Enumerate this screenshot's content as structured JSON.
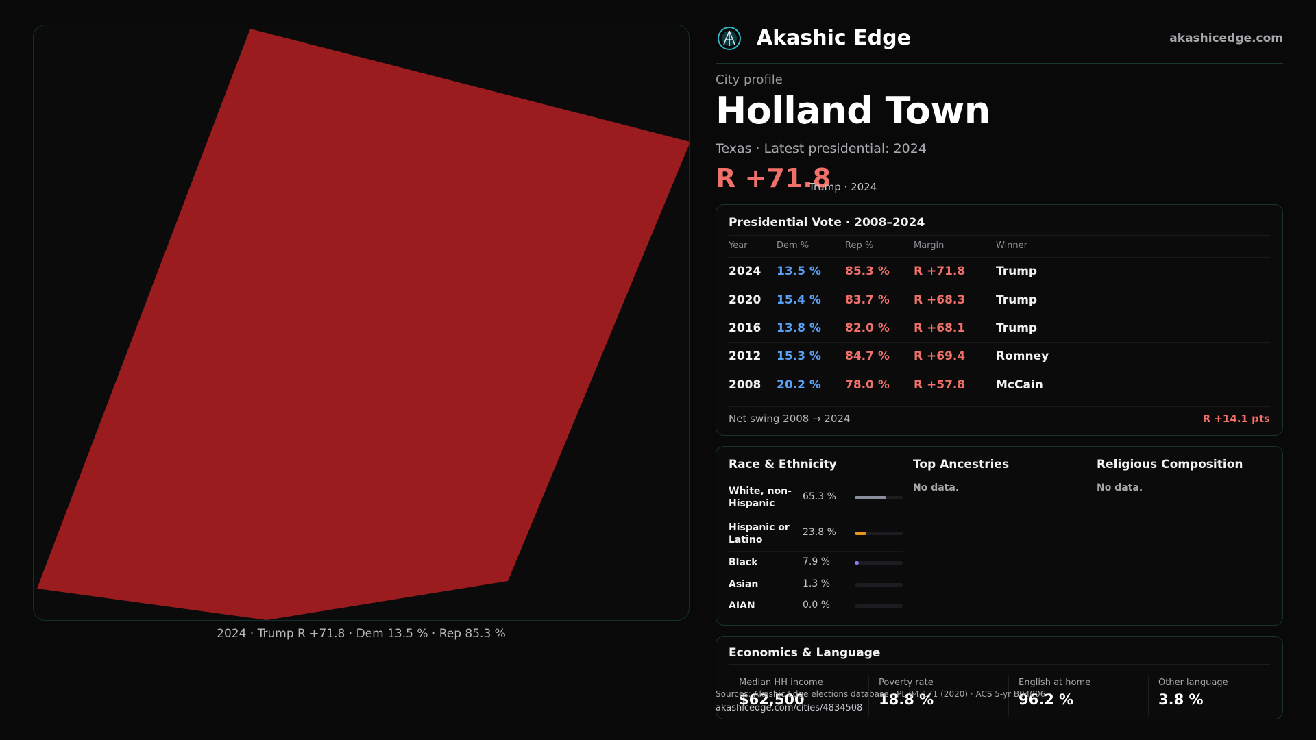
{
  "brand": {
    "name": "Akashic Edge",
    "site": "akashicedge.com",
    "logo_icon": "akashic-edge-logo-icon",
    "accent": "#2fb8c4"
  },
  "map": {
    "fill_color": "#9b1c1f",
    "caption": "2024 · Trump R +71.8 · Dem 13.5 % · Rep 85.3 %"
  },
  "profile": {
    "label": "City profile",
    "city": "Holland Town",
    "meta": "Texas · Latest presidential: 2024",
    "headline_margin": "R +71.8",
    "headline_sub": "Trump · 2024"
  },
  "votes": {
    "title": "Presidential Vote · 2008–2024",
    "columns": [
      "Year",
      "Dem %",
      "Rep %",
      "Margin",
      "Winner"
    ],
    "rows": [
      {
        "year": "2024",
        "dem": "13.5 %",
        "rep": "85.3 %",
        "margin": "R +71.8",
        "winner": "Trump"
      },
      {
        "year": "2020",
        "dem": "15.4 %",
        "rep": "83.7 %",
        "margin": "R +68.3",
        "winner": "Trump"
      },
      {
        "year": "2016",
        "dem": "13.8 %",
        "rep": "82.0 %",
        "margin": "R +68.1",
        "winner": "Trump"
      },
      {
        "year": "2012",
        "dem": "15.3 %",
        "rep": "84.7 %",
        "margin": "R +69.4",
        "winner": "Romney"
      },
      {
        "year": "2008",
        "dem": "20.2 %",
        "rep": "78.0 %",
        "margin": "R +57.8",
        "winner": "McCain"
      }
    ],
    "swing_label": "Net swing 2008 → 2024",
    "swing_value": "R +14.1 pts",
    "dem_color": "#5aa0f5",
    "rep_color": "#f0706a"
  },
  "race": {
    "title": "Race & Ethnicity",
    "rows": [
      {
        "label": "White, non-Hispanic",
        "pct": "65.3 %",
        "value": 65.3,
        "color": "#8a8f9c"
      },
      {
        "label": "Hispanic or Latino",
        "pct": "23.8 %",
        "value": 23.8,
        "color": "#e8951f"
      },
      {
        "label": "Black",
        "pct": "7.9 %",
        "value": 7.9,
        "color": "#8a7cf0"
      },
      {
        "label": "Asian",
        "pct": "1.3 %",
        "value": 1.3,
        "color": "#2fb8a8"
      },
      {
        "label": "AIAN",
        "pct": "0.0 %",
        "value": 0.0,
        "color": "#c06a3a"
      }
    ]
  },
  "ancestries": {
    "title": "Top Ancestries",
    "empty": "No data."
  },
  "religion": {
    "title": "Religious Composition",
    "empty": "No data."
  },
  "economics": {
    "title": "Economics & Language",
    "stats": [
      {
        "label": "Median HH income",
        "value": "$62,500"
      },
      {
        "label": "Poverty rate",
        "value": "18.8 %"
      },
      {
        "label": "English at home",
        "value": "96.2 %"
      },
      {
        "label": "Other language",
        "value": "3.8 %"
      }
    ]
  },
  "footer": {
    "source": "Sources: Akashic Edge elections database · PL 94-171 (2020) · ACS 5-yr B04006",
    "url": "akashicedge.com/cities/4834508"
  }
}
